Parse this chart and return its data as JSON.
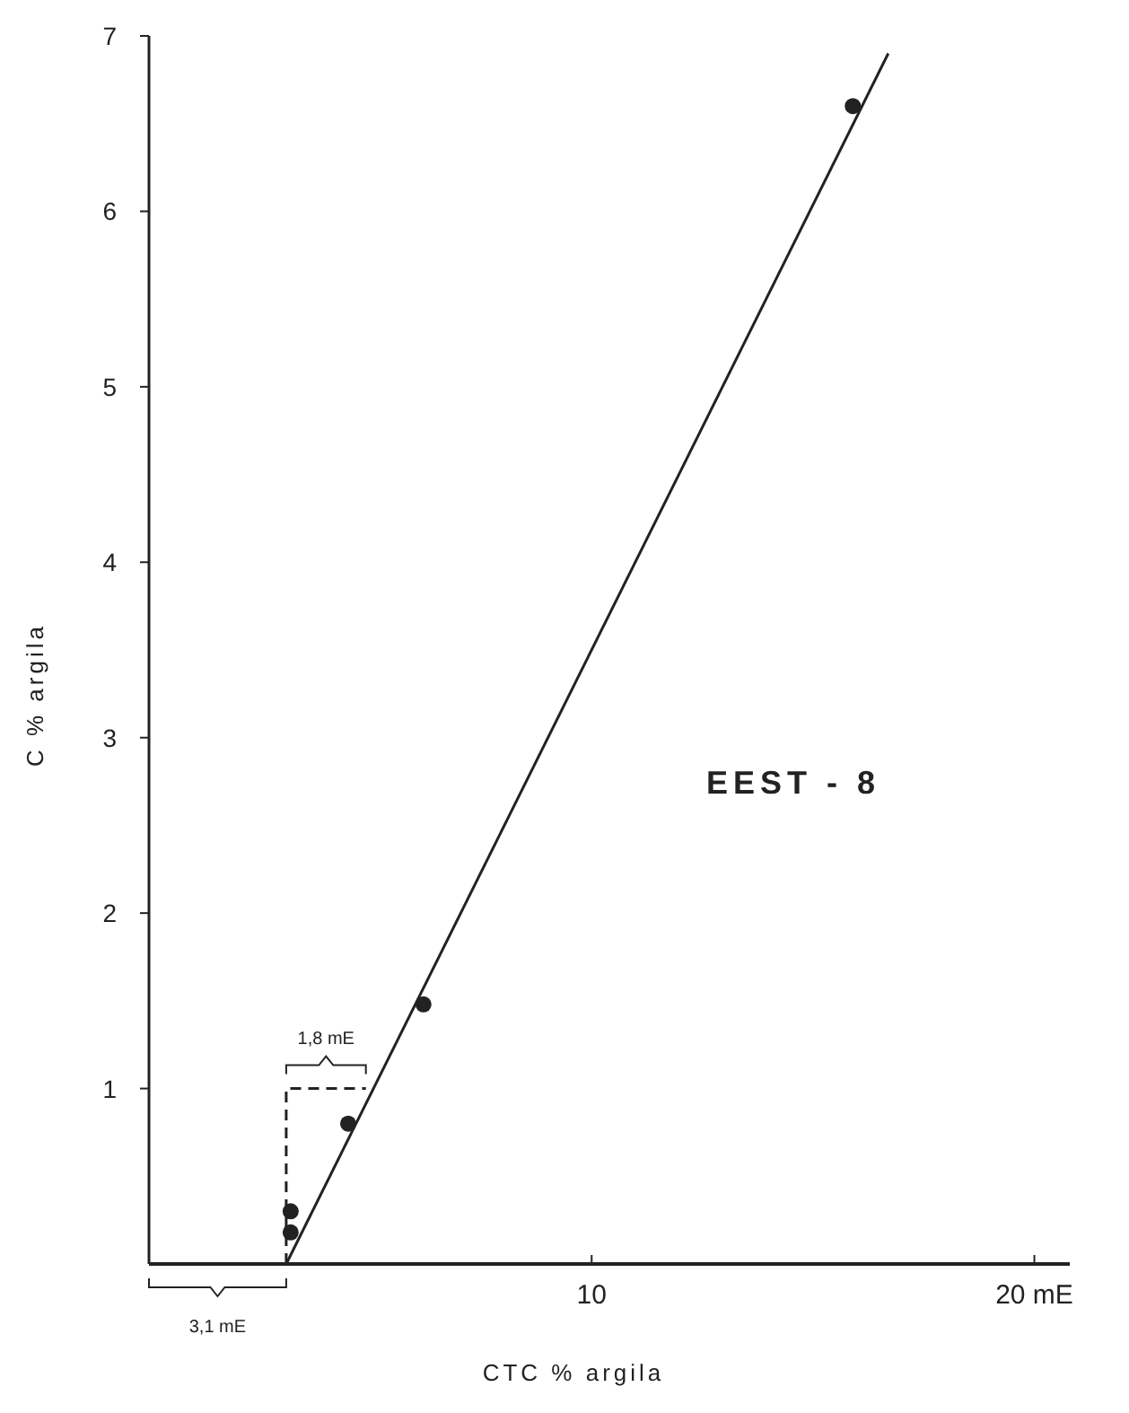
{
  "chart_data": {
    "type": "scatter",
    "xlabel": "CTC % argila",
    "ylabel": "C % argila",
    "xlim": [
      0,
      20.8
    ],
    "ylim": [
      0,
      7
    ],
    "xticks": [
      10,
      {
        "value": 20,
        "label": "20 mE"
      }
    ],
    "yticks": [
      1,
      2,
      3,
      4,
      5,
      6,
      7
    ],
    "grid": false,
    "series": [
      {
        "color": "#222222",
        "x": [
          3.2,
          3.2,
          4.5,
          6.2,
          15.9
        ],
        "values": [
          0.3,
          0.18,
          0.8,
          1.48,
          6.6
        ],
        "marker": "circle"
      },
      {
        "type": "line",
        "color": "#222222",
        "x": [
          3.1,
          16.7
        ],
        "values": [
          0,
          6.9
        ],
        "line_style": "solid",
        "marker": "none"
      },
      {
        "type": "line",
        "color": "#222222",
        "x": [
          3.1,
          3.1,
          4.9
        ],
        "values": [
          0,
          1,
          1
        ],
        "line_style": "dashed",
        "marker": "none"
      }
    ],
    "annotations": [
      "EEST - 8",
      "1,8 mE",
      "3,1 mE"
    ]
  }
}
